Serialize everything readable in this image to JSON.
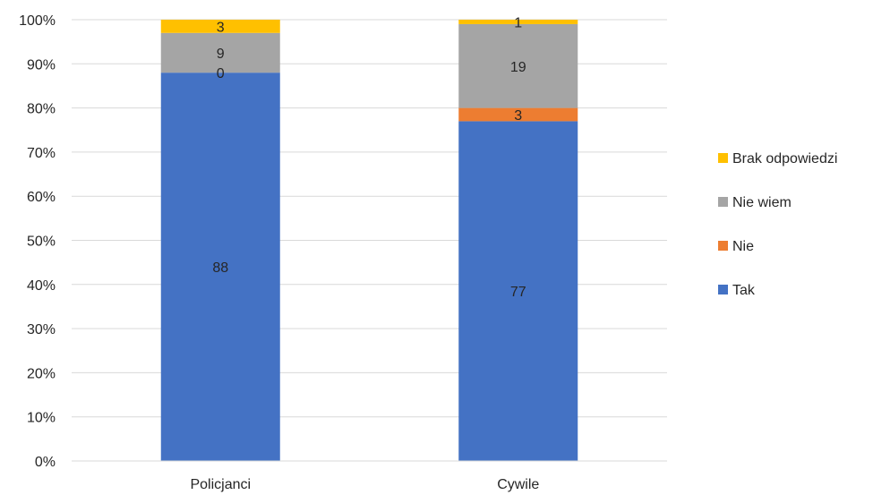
{
  "chart_data": {
    "type": "bar",
    "stacked": true,
    "percent_stacked": true,
    "categories": [
      "Policjanci",
      "Cywile"
    ],
    "series": [
      {
        "name": "Tak",
        "values": [
          88,
          77
        ],
        "color": "#4472C4"
      },
      {
        "name": "Nie",
        "values": [
          0,
          3
        ],
        "color": "#ED7D31"
      },
      {
        "name": "Nie wiem",
        "values": [
          9,
          19
        ],
        "color": "#A5A5A5"
      },
      {
        "name": "Brak odpowiedzi",
        "values": [
          3,
          1
        ],
        "color": "#FFC000"
      }
    ],
    "y_ticks": [
      "0%",
      "10%",
      "20%",
      "30%",
      "40%",
      "50%",
      "60%",
      "70%",
      "80%",
      "90%",
      "100%"
    ],
    "ylim": [
      0,
      100
    ],
    "grid": true,
    "legend_position": "right",
    "data_labels": true,
    "title": "",
    "xlabel": "",
    "ylabel": ""
  }
}
